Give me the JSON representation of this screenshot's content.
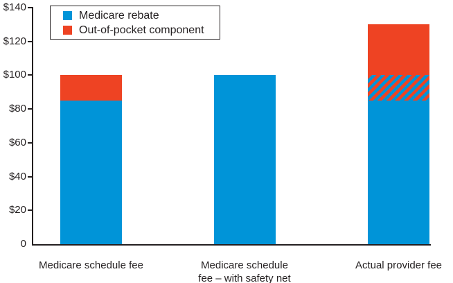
{
  "colors": {
    "rebate_blue": "#0094D8",
    "oop_red": "#EE4323",
    "ink": "#231F20",
    "background": "#FFFFFF"
  },
  "legend": {
    "items": [
      {
        "label": "Medicare rebate",
        "color_key": "rebate_blue"
      },
      {
        "label": "Out-of-pocket component",
        "color_key": "oop_red"
      }
    ]
  },
  "chart_data": {
    "type": "bar",
    "stacked": true,
    "title": "",
    "xlabel": "",
    "ylabel": "",
    "ylim": [
      0,
      140
    ],
    "grid": false,
    "legend_position": "top-left",
    "categories": [
      "Medicare schedule fee",
      "Medicare schedule fee – with safety net",
      "Actual provider fee"
    ],
    "series": [
      {
        "name": "Medicare rebate",
        "style": "rebate",
        "values": [
          85,
          100,
          85
        ]
      },
      {
        "name": "Hatched overlap (blue/red diagonal stripes)",
        "style": "hatch",
        "values": [
          0,
          0,
          15
        ]
      },
      {
        "name": "Out-of-pocket component",
        "style": "oop",
        "values": [
          15,
          0,
          30
        ]
      }
    ],
    "bar_totals": [
      100,
      100,
      130
    ],
    "yticks": [
      {
        "value": 0,
        "label": "0"
      },
      {
        "value": 20,
        "label": "$20"
      },
      {
        "value": 40,
        "label": "$40"
      },
      {
        "value": 60,
        "label": "$60"
      },
      {
        "value": 80,
        "label": "$80"
      },
      {
        "value": 100,
        "label": "$100"
      },
      {
        "value": 120,
        "label": "$120"
      },
      {
        "value": 140,
        "label": "$140"
      }
    ],
    "bars": [
      {
        "label_lines": [
          "Medicare schedule fee"
        ],
        "total": 100,
        "segments": [
          {
            "series": "Medicare rebate",
            "value": 85,
            "style": "rebate"
          },
          {
            "series": "Out-of-pocket component",
            "value": 15,
            "style": "oop"
          }
        ]
      },
      {
        "label_lines": [
          "Medicare schedule",
          "fee – with safety net"
        ],
        "total": 100,
        "segments": [
          {
            "series": "Medicare rebate",
            "value": 100,
            "style": "rebate"
          }
        ]
      },
      {
        "label_lines": [
          "Actual provider fee"
        ],
        "total": 130,
        "segments": [
          {
            "series": "Medicare rebate",
            "value": 85,
            "style": "rebate"
          },
          {
            "series": "Hatched overlap (blue/red diagonal stripes)",
            "value": 15,
            "style": "hatch"
          },
          {
            "series": "Out-of-pocket component",
            "value": 30,
            "style": "oop"
          }
        ]
      }
    ]
  }
}
